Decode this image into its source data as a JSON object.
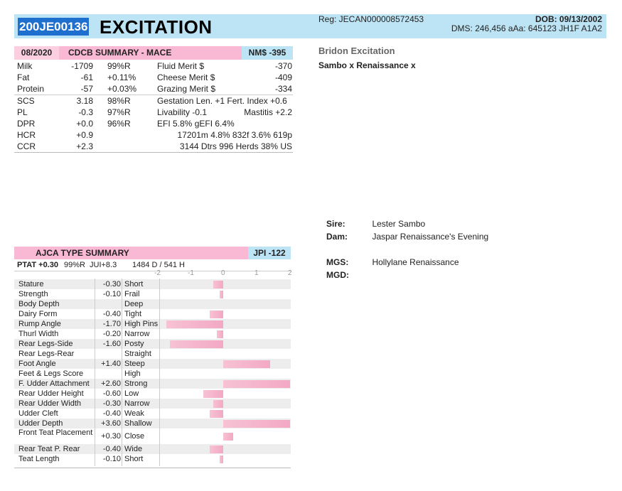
{
  "header": {
    "reg_id": "200JE00136",
    "name": "EXCITATION",
    "reg": "Reg: JECAN000008572453",
    "dob": "DOB: 09/13/2002",
    "dms": "DMS: 246,456  aAa: 645123  JH1F  A1A2"
  },
  "cdcb": {
    "date": "08/2020",
    "title": "CDCB SUMMARY - MACE",
    "index": "NM$ -395",
    "rows": [
      {
        "label": "Milk",
        "val": "-1709",
        "rel": "99%R",
        "mlabel": "Fluid Merit $",
        "mval": "-370"
      },
      {
        "label": "Fat",
        "val": "-61",
        "rel": "+0.11%",
        "mlabel": "Cheese Merit $",
        "mval": "-409"
      },
      {
        "label": "Protein",
        "val": "-57",
        "rel": "+0.03%",
        "mlabel": "Grazing Merit $",
        "mval": "-334"
      },
      {
        "label": "SCS",
        "val": "3.18",
        "rel": "98%R",
        "mlabel": "Gestation Len. +1  Fert. Index +0.6",
        "mval": ""
      },
      {
        "label": "PL",
        "val": "-0.3",
        "rel": "97%R",
        "mlabel": "Livability  -0.1",
        "mval": "Mastitis  +2.2"
      },
      {
        "label": "DPR",
        "val": "+0.0",
        "rel": "96%R",
        "mlabel": " EFI  5.8%  gEFI  6.4%",
        "mval": ""
      },
      {
        "label": "HCR",
        "val": "+0.9",
        "rel": "",
        "mlabel": "",
        "mval": "17201m  4.8%  832f  3.6%  619p"
      },
      {
        "label": "CCR",
        "val": "+2.3",
        "rel": "",
        "mlabel": "",
        "mval": "3144 Dtrs  996 Herds  38% US"
      }
    ]
  },
  "side": {
    "full_name": "Bridon Excitation",
    "parentage": "Sambo x Renaissance x"
  },
  "pedigree": {
    "sire_label": "Sire:",
    "sire": "Lester Sambo",
    "dam_label": "Dam:",
    "dam": "Jaspar Renaissance's Evening",
    "mgs_label": "MGS:",
    "mgs": "Hollylane Renaissance",
    "mgd_label": "MGD:",
    "mgd": ""
  },
  "ajca": {
    "title": "AJCA TYPE SUMMARY",
    "index": "JPI -122",
    "ptat_label": "PTAT +0.30",
    "ptat_rel": "99%R",
    "jui": "JUI+8.3",
    "daughters": "1484 D /  541 H",
    "scale": [
      "-2",
      "-1",
      "0",
      "1",
      "2"
    ],
    "traits": [
      {
        "name": "Stature",
        "value": -0.3,
        "val": "-0.30",
        "desc": "Short"
      },
      {
        "name": "Strength",
        "value": -0.1,
        "val": "-0.10",
        "desc": "Frail"
      },
      {
        "name": "Body Depth",
        "value": 0,
        "val": "",
        "desc": "Deep"
      },
      {
        "name": "Dairy Form",
        "value": -0.4,
        "val": "-0.40",
        "desc": "Tight"
      },
      {
        "name": "Rump Angle",
        "value": -1.7,
        "val": "-1.70",
        "desc": "High Pins"
      },
      {
        "name": "Thurl Width",
        "value": -0.2,
        "val": "-0.20",
        "desc": "Narrow"
      },
      {
        "name": "Rear Legs-Side",
        "value": -1.6,
        "val": "-1.60",
        "desc": "Posty"
      },
      {
        "name": "Rear Legs-Rear",
        "value": 0,
        "val": "",
        "desc": "Straight"
      },
      {
        "name": "Foot Angle",
        "value": 1.4,
        "val": "+1.40",
        "desc": "Steep"
      },
      {
        "name": "Feet & Legs Score",
        "value": 0,
        "val": "",
        "desc": "High"
      },
      {
        "name": "F. Udder Attachment",
        "value": 2.6,
        "val": "+2.60",
        "desc": "Strong"
      },
      {
        "name": "Rear Udder Height",
        "value": -0.6,
        "val": "-0.60",
        "desc": "Low"
      },
      {
        "name": "Rear Udder Width",
        "value": -0.3,
        "val": "-0.30",
        "desc": "Narrow"
      },
      {
        "name": "Udder Cleft",
        "value": -0.4,
        "val": "-0.40",
        "desc": "Weak"
      },
      {
        "name": "Udder Depth",
        "value": 3.6,
        "val": "+3.60",
        "desc": "Shallow"
      },
      {
        "name": "Front Teat Placement",
        "value": 0.3,
        "val": "+0.30",
        "desc": "Close"
      },
      {
        "name": "Rear Teat P. Rear",
        "value": -0.4,
        "val": "-0.40",
        "desc": "Wide"
      },
      {
        "name": "Teat Length",
        "value": -0.1,
        "val": "-0.10",
        "desc": "Short"
      }
    ]
  },
  "colors": {
    "header_blue": "#bde4f5",
    "id_blue": "#1f6fcf",
    "pink": "#f9b8d3"
  }
}
